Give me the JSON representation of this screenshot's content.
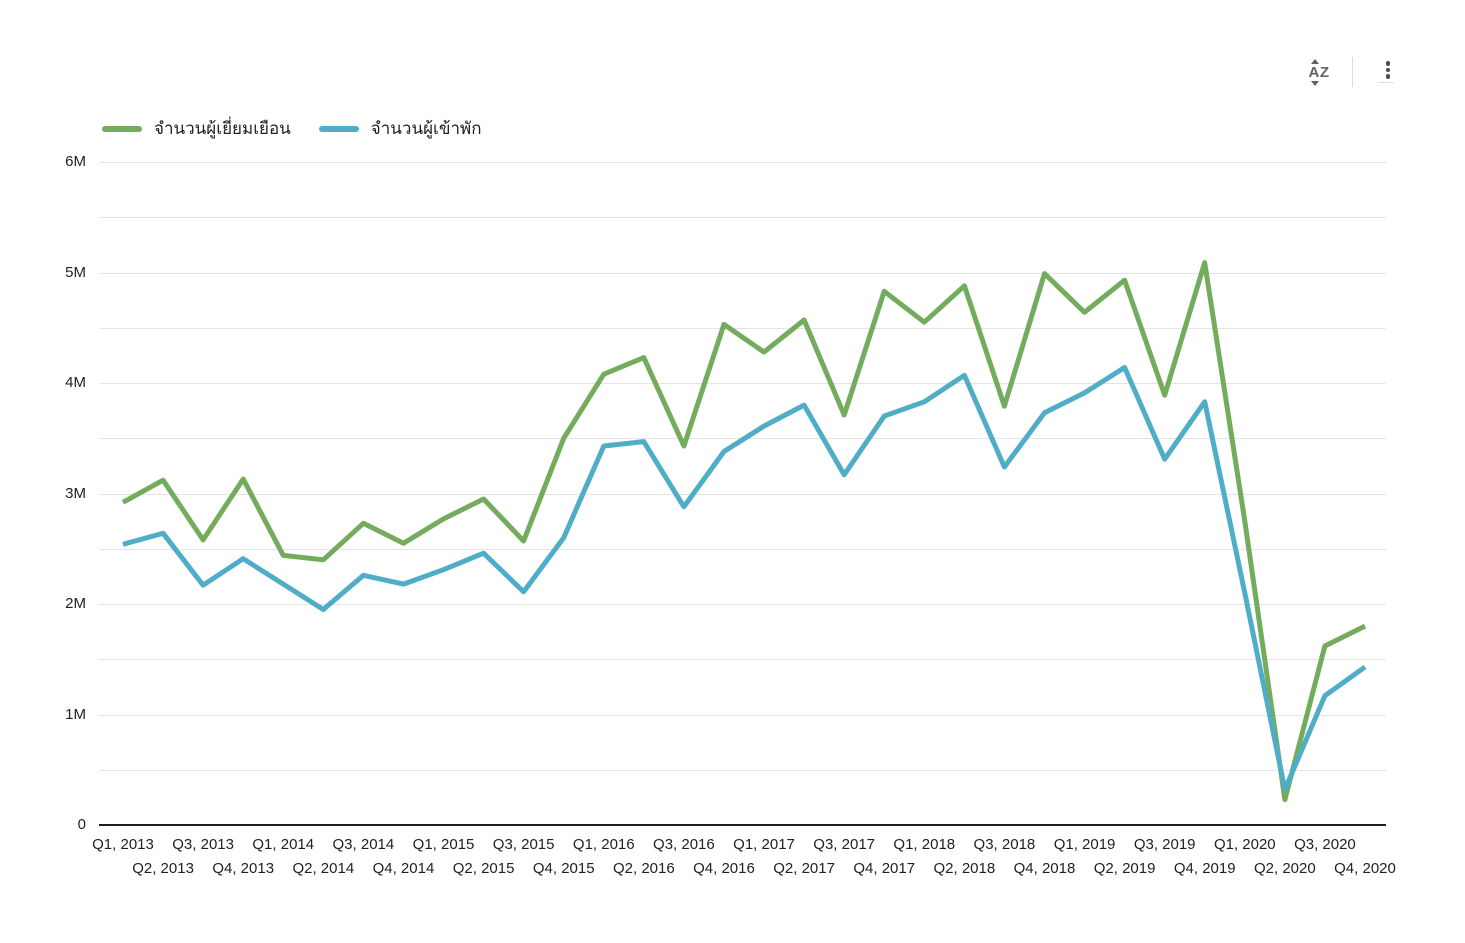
{
  "toolbar": {
    "sort_label": "AZ",
    "sort_icon": "sort-az-with-up-down-arrows",
    "menu_icon": "vertical-three-dot-kebab-menu"
  },
  "chart_data": {
    "type": "line",
    "title": "",
    "xlabel": "",
    "ylabel": "",
    "x": [
      "Q1, 2013",
      "Q2, 2013",
      "Q3, 2013",
      "Q4, 2013",
      "Q1, 2014",
      "Q2, 2014",
      "Q3, 2014",
      "Q4, 2014",
      "Q1, 2015",
      "Q2, 2015",
      "Q3, 2015",
      "Q4, 2015",
      "Q1, 2016",
      "Q2, 2016",
      "Q3, 2016",
      "Q4, 2016",
      "Q1, 2017",
      "Q2, 2017",
      "Q3, 2017",
      "Q4, 2017",
      "Q1, 2018",
      "Q2, 2018",
      "Q3, 2018",
      "Q4, 2018",
      "Q1, 2019",
      "Q2, 2019",
      "Q3, 2019",
      "Q4, 2019",
      "Q1, 2020",
      "Q2, 2020",
      "Q3, 2020",
      "Q4, 2020"
    ],
    "series": [
      {
        "name": "จำนวนผู้เยี่ยมเยือน",
        "color": "#73ac5c",
        "unit": "millions",
        "values": [
          2.92,
          3.12,
          2.58,
          3.13,
          2.44,
          2.4,
          2.73,
          2.55,
          2.77,
          2.95,
          2.57,
          3.5,
          4.08,
          4.23,
          3.43,
          4.53,
          4.28,
          4.57,
          3.71,
          4.83,
          4.55,
          4.88,
          3.79,
          4.99,
          4.64,
          4.93,
          3.89,
          5.09,
          2.75,
          0.23,
          1.62,
          1.8
        ]
      },
      {
        "name": "จำนวนผู้เข้าพัก",
        "color": "#4fadc7",
        "unit": "millions",
        "values": [
          2.54,
          2.64,
          2.17,
          2.41,
          2.18,
          1.95,
          2.26,
          2.18,
          2.31,
          2.46,
          2.11,
          2.6,
          3.43,
          3.47,
          2.88,
          3.38,
          3.61,
          3.8,
          3.17,
          3.7,
          3.83,
          4.07,
          3.24,
          3.73,
          3.91,
          4.14,
          3.31,
          3.83,
          2.1,
          0.32,
          1.17,
          1.43
        ]
      }
    ],
    "y_tick_labels": [
      "0",
      "1M",
      "2M",
      "3M",
      "4M",
      "5M",
      "6M"
    ],
    "ylim_millions": [
      0,
      6
    ],
    "grid": "horizontal gridlines every 0.5M, vertical off",
    "legend_position": "top-left",
    "x_label_layout": "staggered two rows"
  }
}
